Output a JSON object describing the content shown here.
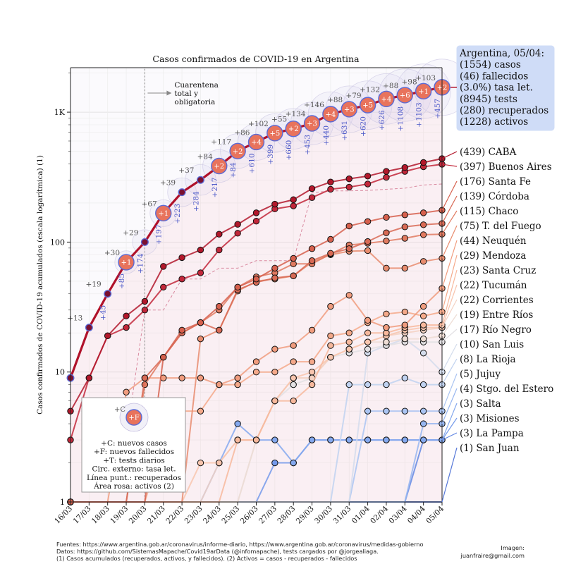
{
  "chart_data": {
    "type": "line",
    "title": "Casos confirmados de COVID-19 en Argentina",
    "ylabel": "Casos confirmados de COVID-19 acumulados (escala logarítmica) (1)",
    "xlabel": "",
    "yscale": "log",
    "ylim": [
      1,
      2200
    ],
    "grid": true,
    "categories": [
      "16/03",
      "17/03",
      "18/03",
      "19/03",
      "20/03",
      "21/03",
      "22/03",
      "23/03",
      "24/03",
      "25/03",
      "26/03",
      "27/03",
      "28/03",
      "29/03",
      "30/03",
      "31/03",
      "01/04",
      "02/04",
      "03/04",
      "04/04",
      "05/04"
    ],
    "y_ticks": [
      {
        "v": 1,
        "label": "1"
      },
      {
        "v": 10,
        "label": "10"
      },
      {
        "v": 100,
        "label": "100"
      },
      {
        "v": 1000,
        "label": "1K"
      }
    ],
    "national": {
      "name": "Argentina",
      "cases": [
        9,
        22,
        40,
        70,
        100,
        167,
        242,
        301,
        385,
        502,
        589,
        690,
        745,
        820,
        966,
        1054,
        1133,
        1265,
        1353,
        1451,
        1554
      ],
      "new_cases": [
        "+13",
        "+19",
        "+30",
        "+29",
        "+67",
        "+39",
        "+37",
        "+84",
        "+117",
        "+86",
        "+102",
        "+55",
        "+134",
        "+146",
        "+88",
        "+79",
        "+132",
        "+88",
        "+98",
        "+103"
      ],
      "new_deaths": [
        "",
        "",
        "+1",
        "",
        "+1",
        "",
        "",
        "+2",
        "+2",
        "+4",
        "+5",
        "+2",
        "+3",
        "+4",
        "+3",
        "+5",
        "+4",
        "+6",
        "+1",
        "+2"
      ],
      "tests": [
        "",
        "+45",
        "+85",
        "+174",
        "+197",
        "+223",
        "+284",
        "+217",
        "+84",
        "+610",
        "+399",
        "+660",
        "+453",
        "+440",
        "+631",
        "+620",
        "+626",
        "+1108",
        "+1103",
        "+457"
      ],
      "active_band_upper": [
        9,
        22,
        40,
        70,
        100,
        167,
        242,
        301,
        385,
        502,
        589,
        690,
        745,
        820,
        966,
        1054,
        1133,
        1265,
        1353,
        1451,
        1554
      ],
      "active_band_lower": [
        1,
        1,
        1,
        1,
        1,
        1,
        1,
        1,
        1,
        1,
        1,
        1,
        1,
        1,
        1,
        1,
        1,
        1,
        1,
        1,
        1
      ],
      "recovered_line": [
        null,
        null,
        3,
        3,
        30,
        30,
        52,
        52,
        63,
        63,
        72,
        72,
        72,
        240,
        248,
        248,
        250,
        255,
        260,
        275,
        280
      ]
    },
    "annotation": {
      "text": "Cuarentena\ntotal y\nobligatoria",
      "x": "20/03"
    },
    "summary_box": [
      "Argentina, 05/04:",
      "(1554) casos",
      "(46) fallecidos",
      "(3.0%) tasa let.",
      "(8945) tests",
      "(280) recuperados",
      "(1228) activos"
    ],
    "legend_box": [
      "+C: nuevos casos",
      "+F: nuevos fallecidos",
      "+T: tests diarios",
      "Circ. externo: tasa let.",
      "Línea punt.: recuperados",
      "Área rosa: activos (2)"
    ],
    "legend_symbol_c": "+C",
    "legend_symbol_f": "+F",
    "series": [
      {
        "name": "(439) CABA",
        "color": "#b2182b",
        "values": [
          5,
          9,
          19,
          27,
          35,
          65,
          76,
          87,
          115,
          137,
          168,
          196,
          212,
          258,
          290,
          307,
          322,
          350,
          375,
          410,
          439
        ]
      },
      {
        "name": "(397) Buenos Aires",
        "color": "#c2273a",
        "values": [
          3,
          9,
          19,
          22,
          30,
          45,
          52,
          58,
          87,
          117,
          145,
          180,
          190,
          220,
          255,
          265,
          280,
          315,
          350,
          380,
          397
        ]
      },
      {
        "name": "(176) Santa Fe",
        "color": "#d6604d",
        "values": [
          1,
          1,
          1,
          1,
          1,
          13,
          21,
          24,
          32,
          45,
          52,
          63,
          75,
          89,
          105,
          133,
          144,
          155,
          162,
          168,
          176
        ]
      },
      {
        "name": "(139) Córdoba",
        "color": "#d86a55",
        "values": [
          1,
          1,
          1,
          1,
          9,
          13,
          20,
          24,
          21,
          43,
          49,
          53,
          55,
          72,
          82,
          89,
          101,
          118,
          131,
          136,
          139
        ]
      },
      {
        "name": "(115) Chaco",
        "color": "#e07a60",
        "values": [
          1,
          1,
          1,
          1,
          8,
          13,
          20,
          24,
          30,
          45,
          54,
          58,
          68,
          68,
          81,
          95,
          98,
          102,
          107,
          114,
          115
        ]
      },
      {
        "name": "(75) T. del Fuego",
        "color": "#e88c6e",
        "values": [
          1,
          1,
          1,
          1,
          1,
          1,
          1,
          18,
          21,
          42,
          50,
          52,
          55,
          70,
          80,
          85,
          86,
          63,
          63,
          71,
          75
        ]
      },
      {
        "name": "(44) Neuquén",
        "color": "#f09c7e",
        "values": [
          1,
          1,
          1,
          7,
          9,
          9,
          9,
          9,
          8,
          9,
          12,
          15,
          16,
          21,
          32,
          39,
          25,
          22,
          23,
          32,
          44
        ]
      },
      {
        "name": "(29) Mendoza",
        "color": "#f4a98a",
        "values": [
          1,
          1,
          1,
          1,
          1,
          3,
          5,
          5,
          8,
          8,
          10,
          10,
          12,
          12,
          19,
          20,
          24,
          28,
          29,
          27,
          29
        ]
      },
      {
        "name": "(23) Santa Cruz",
        "color": "#f7b89c",
        "values": [
          1,
          1,
          1,
          1,
          1,
          1,
          1,
          1,
          1,
          3,
          3,
          6,
          6,
          8,
          16,
          17,
          20,
          20,
          22,
          23,
          23
        ]
      },
      {
        "name": "(22) Tucumán",
        "color": "#f8c5ae",
        "values": [
          1,
          1,
          1,
          1,
          1,
          1,
          1,
          2,
          2,
          3,
          3,
          6,
          9,
          10,
          13,
          15,
          17,
          19,
          21,
          22,
          22
        ]
      },
      {
        "name": "(22) Corrientes",
        "color": "#f3d1c2",
        "values": [
          1,
          1,
          1,
          1,
          1,
          1,
          1,
          1,
          2,
          3,
          3,
          6,
          9,
          9,
          13,
          15,
          17,
          19,
          20,
          21,
          22
        ]
      },
      {
        "name": "(19) Entre Ríos",
        "color": "#eddcd4",
        "values": [
          1,
          1,
          1,
          1,
          1,
          1,
          1,
          1,
          1,
          1,
          3,
          6,
          9,
          9,
          13,
          15,
          17,
          17,
          18,
          18,
          19
        ]
      },
      {
        "name": "(17) Río Negro",
        "color": "#e2e0e3",
        "values": [
          1,
          1,
          1,
          1,
          1,
          1,
          1,
          1,
          1,
          1,
          3,
          6,
          8,
          9,
          13,
          14,
          15,
          16,
          17,
          17,
          17
        ]
      },
      {
        "name": "(10) San Luis",
        "color": "#d3dcec",
        "values": [
          1,
          1,
          1,
          1,
          1,
          1,
          1,
          1,
          1,
          1,
          1,
          1,
          1,
          1,
          1,
          1,
          14,
          16,
          18,
          14,
          10
        ]
      },
      {
        "name": "(8) La Rioja",
        "color": "#c0d2f0",
        "values": [
          1,
          1,
          1,
          1,
          1,
          1,
          1,
          1,
          1,
          1,
          1,
          1,
          1,
          1,
          1,
          8,
          8,
          8,
          9,
          8,
          8
        ]
      },
      {
        "name": "(5) Jujuy",
        "color": "#aac4f2",
        "values": [
          1,
          1,
          1,
          1,
          1,
          1,
          1,
          1,
          1,
          1,
          1,
          1,
          1,
          1,
          1,
          1,
          5,
          5,
          5,
          5,
          5
        ]
      },
      {
        "name": "(4) Stgo. del Estero",
        "color": "#97b6f0",
        "values": [
          1,
          1,
          1,
          1,
          1,
          1,
          1,
          1,
          1,
          1,
          1,
          1,
          1,
          1,
          1,
          1,
          1,
          1,
          1,
          4,
          4
        ]
      },
      {
        "name": "(3) Salta",
        "color": "#84a8ee",
        "values": [
          1,
          1,
          1,
          1,
          1,
          1,
          1,
          1,
          2,
          4,
          3,
          3,
          2,
          3,
          3,
          3,
          3,
          3,
          3,
          3,
          3
        ]
      },
      {
        "name": "(3) Misiones",
        "color": "#7399ea",
        "values": [
          1,
          1,
          1,
          1,
          1,
          1,
          1,
          1,
          1,
          1,
          1,
          2,
          2,
          3,
          3,
          3,
          3,
          3,
          3,
          3,
          3
        ]
      },
      {
        "name": "(3) La Pampa",
        "color": "#6388e3",
        "values": [
          1,
          1,
          1,
          1,
          1,
          1,
          1,
          1,
          1,
          1,
          1,
          1,
          1,
          1,
          1,
          1,
          1,
          1,
          1,
          3,
          3
        ]
      },
      {
        "name": "(1) San Juan",
        "color": "#5577d8",
        "values": [
          1,
          1,
          1,
          1,
          1,
          1,
          1,
          1,
          1,
          1,
          1,
          1,
          1,
          1,
          1,
          1,
          1,
          1,
          1,
          1,
          1
        ]
      }
    ]
  },
  "footer": {
    "sources": "Fuentes: https://www.argentina.gob.ar/coronavirus/informe-diario, https://www.argentina.gob.ar/coronavirus/medidas-gobierno",
    "data": "Datos: https://github.com/SistemasMapache/Covid19arData (@infomapache), tests cargados por @jorgealiaga.",
    "notes": "(1) Casos acumulados (recuperados, activos, y fallecidos). (2) Activos = casos - recuperados - fallecidos",
    "credit_label": "Imagen:",
    "credit_email": "juanfraire@gmail.com"
  }
}
